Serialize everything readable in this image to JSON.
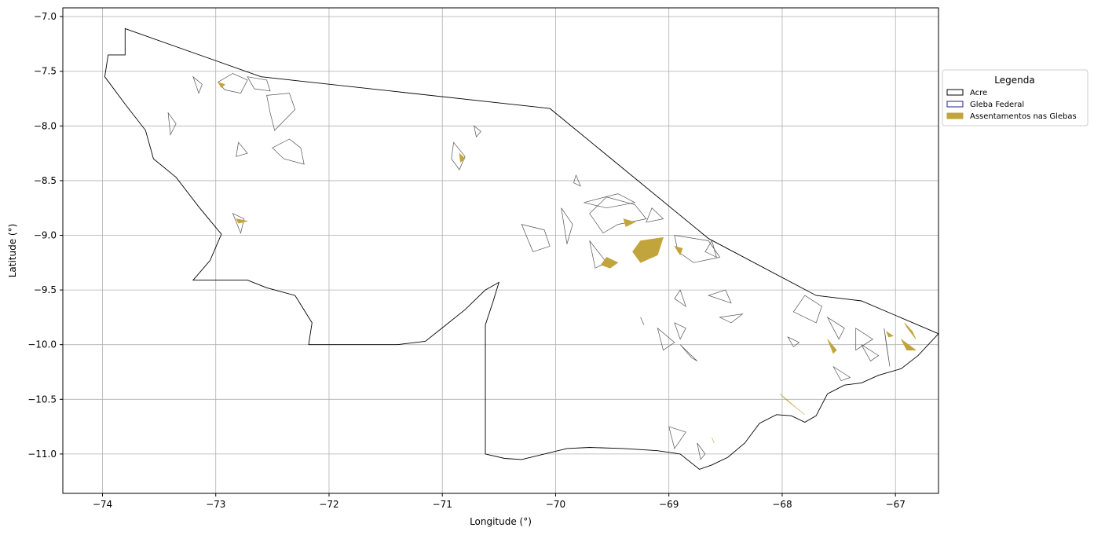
{
  "chart_data": {
    "type": "map",
    "xlabel": "Longitude (°)",
    "ylabel": "Latitude (°)",
    "xlim": [
      -74.35,
      -66.62
    ],
    "ylim": [
      -11.36,
      -6.92
    ],
    "xticks": [
      -74,
      -73,
      -72,
      -71,
      -70,
      -69,
      -68,
      -67
    ],
    "yticks": [
      -7.0,
      -7.5,
      -8.0,
      -8.5,
      -9.0,
      -9.5,
      -10.0,
      -10.5,
      -11.0
    ],
    "xtick_labels": [
      "−74",
      "−73",
      "−72",
      "−71",
      "−70",
      "−69",
      "−68",
      "−67"
    ],
    "ytick_labels": [
      "−7.0",
      "−7.5",
      "−8.0",
      "−8.5",
      "−9.0",
      "−9.5",
      "−10.0",
      "−10.5",
      "−11.0"
    ],
    "grid": true,
    "legend": {
      "title": "Legenda",
      "placement": "outside-right-top",
      "entries": [
        {
          "label": "Acre",
          "color": "#000000",
          "style": "outline"
        },
        {
          "label": "Gleba Federal",
          "color": "#1f1fa0",
          "style": "outline"
        },
        {
          "label": "Assentamentos nas Glebas",
          "color": "#c2a43c",
          "style": "fill"
        }
      ]
    },
    "acre_boundary": [
      [
        -73.8,
        -7.11
      ],
      [
        -72.6,
        -7.55
      ],
      [
        -70.05,
        -7.84
      ],
      [
        -68.65,
        -9.03
      ],
      [
        -67.7,
        -9.55
      ],
      [
        -67.3,
        -9.6
      ],
      [
        -66.62,
        -9.9
      ],
      [
        -66.8,
        -10.1
      ],
      [
        -66.95,
        -10.22
      ],
      [
        -67.15,
        -10.28
      ],
      [
        -67.3,
        -10.35
      ],
      [
        -67.45,
        -10.37
      ],
      [
        -67.6,
        -10.45
      ],
      [
        -67.7,
        -10.65
      ],
      [
        -67.8,
        -10.71
      ],
      [
        -67.92,
        -10.65
      ],
      [
        -68.05,
        -10.64
      ],
      [
        -68.2,
        -10.72
      ],
      [
        -68.33,
        -10.9
      ],
      [
        -68.48,
        -11.03
      ],
      [
        -68.62,
        -11.1
      ],
      [
        -68.73,
        -11.14
      ],
      [
        -68.9,
        -11.0
      ],
      [
        -69.1,
        -10.97
      ],
      [
        -69.4,
        -10.95
      ],
      [
        -69.7,
        -10.94
      ],
      [
        -69.9,
        -10.95
      ],
      [
        -70.1,
        -11.0
      ],
      [
        -70.3,
        -11.05
      ],
      [
        -70.45,
        -11.04
      ],
      [
        -70.62,
        -11.0
      ],
      [
        -70.62,
        -9.82
      ],
      [
        -70.55,
        -9.6
      ],
      [
        -70.5,
        -9.43
      ],
      [
        -70.62,
        -9.5
      ],
      [
        -70.8,
        -9.68
      ],
      [
        -70.98,
        -9.83
      ],
      [
        -71.15,
        -9.97
      ],
      [
        -71.4,
        -10.0
      ],
      [
        -72.18,
        -10.0
      ],
      [
        -72.15,
        -9.8
      ],
      [
        -72.3,
        -9.55
      ],
      [
        -72.55,
        -9.48
      ],
      [
        -72.72,
        -9.41
      ],
      [
        -73.2,
        -9.41
      ],
      [
        -73.05,
        -9.23
      ],
      [
        -72.95,
        -8.99
      ],
      [
        -73.15,
        -8.74
      ],
      [
        -73.35,
        -8.47
      ],
      [
        -73.55,
        -8.3
      ],
      [
        -73.62,
        -8.04
      ],
      [
        -73.8,
        -7.8
      ],
      [
        -73.98,
        -7.55
      ],
      [
        -73.95,
        -7.35
      ],
      [
        -73.8,
        -7.35
      ],
      [
        -73.8,
        -7.11
      ]
    ],
    "glebas": [
      [
        [
          -72.98,
          -7.6
        ],
        [
          -72.85,
          -7.52
        ],
        [
          -72.72,
          -7.58
        ],
        [
          -72.78,
          -7.7
        ],
        [
          -72.92,
          -7.67
        ]
      ],
      [
        [
          -72.72,
          -7.55
        ],
        [
          -72.55,
          -7.58
        ],
        [
          -72.52,
          -7.68
        ],
        [
          -72.66,
          -7.66
        ]
      ],
      [
        [
          -72.55,
          -7.72
        ],
        [
          -72.35,
          -7.7
        ],
        [
          -72.3,
          -7.85
        ],
        [
          -72.48,
          -8.04
        ],
        [
          -72.52,
          -7.88
        ]
      ],
      [
        [
          -73.2,
          -7.55
        ],
        [
          -73.15,
          -7.7
        ],
        [
          -73.12,
          -7.62
        ]
      ],
      [
        [
          -73.35,
          -7.98
        ],
        [
          -73.4,
          -8.08
        ],
        [
          -73.42,
          -7.88
        ]
      ],
      [
        [
          -72.5,
          -8.2
        ],
        [
          -72.35,
          -8.12
        ],
        [
          -72.25,
          -8.2
        ],
        [
          -72.22,
          -8.35
        ],
        [
          -72.4,
          -8.3
        ]
      ],
      [
        [
          -72.8,
          -8.15
        ],
        [
          -72.72,
          -8.25
        ],
        [
          -72.82,
          -8.28
        ]
      ],
      [
        [
          -72.85,
          -8.8
        ],
        [
          -72.75,
          -8.85
        ],
        [
          -72.78,
          -8.98
        ]
      ],
      [
        [
          -70.9,
          -8.15
        ],
        [
          -70.8,
          -8.28
        ],
        [
          -70.85,
          -8.4
        ],
        [
          -70.92,
          -8.3
        ]
      ],
      [
        [
          -70.72,
          -8.0
        ],
        [
          -70.66,
          -8.05
        ],
        [
          -70.7,
          -8.1
        ]
      ],
      [
        [
          -69.82,
          -8.45
        ],
        [
          -69.78,
          -8.55
        ],
        [
          -69.84,
          -8.52
        ]
      ],
      [
        [
          -69.95,
          -8.75
        ],
        [
          -69.9,
          -9.08
        ],
        [
          -69.85,
          -8.9
        ]
      ],
      [
        [
          -70.3,
          -8.9
        ],
        [
          -70.1,
          -8.95
        ],
        [
          -70.05,
          -9.1
        ],
        [
          -70.2,
          -9.15
        ]
      ],
      [
        [
          -69.7,
          -8.8
        ],
        [
          -69.55,
          -8.65
        ],
        [
          -69.3,
          -8.72
        ],
        [
          -69.2,
          -8.85
        ],
        [
          -69.45,
          -8.9
        ],
        [
          -69.58,
          -8.98
        ]
      ],
      [
        [
          -69.75,
          -8.7
        ],
        [
          -69.45,
          -8.62
        ],
        [
          -69.3,
          -8.7
        ],
        [
          -69.55,
          -8.75
        ]
      ],
      [
        [
          -69.15,
          -8.75
        ],
        [
          -69.05,
          -8.85
        ],
        [
          -69.2,
          -8.88
        ]
      ],
      [
        [
          -69.55,
          -9.25
        ],
        [
          -69.7,
          -9.05
        ],
        [
          -69.65,
          -9.3
        ]
      ],
      [
        [
          -68.95,
          -9.0
        ],
        [
          -68.65,
          -9.05
        ],
        [
          -68.55,
          -9.2
        ],
        [
          -68.78,
          -9.25
        ],
        [
          -68.92,
          -9.15
        ]
      ],
      [
        [
          -68.62,
          -9.05
        ],
        [
          -68.58,
          -9.2
        ],
        [
          -68.68,
          -9.15
        ]
      ],
      [
        [
          -68.9,
          -9.5
        ],
        [
          -68.85,
          -9.65
        ],
        [
          -68.95,
          -9.58
        ]
      ],
      [
        [
          -68.65,
          -9.55
        ],
        [
          -68.5,
          -9.5
        ],
        [
          -68.45,
          -9.62
        ]
      ],
      [
        [
          -68.95,
          -9.8
        ],
        [
          -68.85,
          -9.85
        ],
        [
          -68.9,
          -9.95
        ]
      ],
      [
        [
          -69.1,
          -9.85
        ],
        [
          -68.95,
          -9.98
        ],
        [
          -69.05,
          -10.05
        ]
      ],
      [
        [
          -68.9,
          -10.0
        ],
        [
          -68.75,
          -10.15
        ],
        [
          -68.8,
          -10.12
        ]
      ],
      [
        [
          -69.25,
          -9.75
        ],
        [
          -69.22,
          -9.82
        ]
      ],
      [
        [
          -68.55,
          -9.75
        ],
        [
          -68.35,
          -9.72
        ],
        [
          -68.45,
          -9.8
        ]
      ],
      [
        [
          -67.8,
          -9.55
        ],
        [
          -67.65,
          -9.65
        ],
        [
          -67.7,
          -9.8
        ],
        [
          -67.9,
          -9.7
        ]
      ],
      [
        [
          -67.6,
          -9.75
        ],
        [
          -67.45,
          -9.85
        ],
        [
          -67.5,
          -9.95
        ]
      ],
      [
        [
          -67.35,
          -9.85
        ],
        [
          -67.2,
          -9.95
        ],
        [
          -67.35,
          -10.05
        ]
      ],
      [
        [
          -67.3,
          -10.0
        ],
        [
          -67.15,
          -10.1
        ],
        [
          -67.22,
          -10.15
        ]
      ],
      [
        [
          -67.95,
          -9.93
        ],
        [
          -67.85,
          -9.98
        ],
        [
          -67.9,
          -10.02
        ]
      ],
      [
        [
          -67.55,
          -10.2
        ],
        [
          -67.4,
          -10.3
        ],
        [
          -67.48,
          -10.33
        ]
      ],
      [
        [
          -67.1,
          -9.85
        ],
        [
          -67.05,
          -10.2
        ],
        [
          -67.08,
          -10.0
        ]
      ],
      [
        [
          -69.0,
          -10.75
        ],
        [
          -68.85,
          -10.8
        ],
        [
          -68.95,
          -10.95
        ]
      ],
      [
        [
          -68.75,
          -10.9
        ],
        [
          -68.68,
          -11.0
        ],
        [
          -68.72,
          -11.05
        ]
      ]
    ],
    "assentamentos": [
      [
        [
          -69.25,
          -9.05
        ],
        [
          -69.05,
          -9.02
        ],
        [
          -69.1,
          -9.18
        ],
        [
          -69.25,
          -9.25
        ],
        [
          -69.32,
          -9.15
        ]
      ],
      [
        [
          -69.55,
          -9.2
        ],
        [
          -69.45,
          -9.25
        ],
        [
          -69.52,
          -9.3
        ],
        [
          -69.6,
          -9.27
        ]
      ],
      [
        [
          -68.95,
          -9.1
        ],
        [
          -68.88,
          -9.12
        ],
        [
          -68.9,
          -9.18
        ]
      ],
      [
        [
          -69.4,
          -8.85
        ],
        [
          -69.3,
          -8.88
        ],
        [
          -69.38,
          -8.92
        ]
      ],
      [
        [
          -68.02,
          -10.45
        ],
        [
          -67.85,
          -10.6
        ],
        [
          -67.8,
          -10.64
        ],
        [
          -67.97,
          -10.5
        ]
      ],
      [
        [
          -67.6,
          -9.95
        ],
        [
          -67.52,
          -10.05
        ],
        [
          -67.55,
          -10.08
        ]
      ],
      [
        [
          -66.92,
          -9.8
        ],
        [
          -66.85,
          -9.88
        ],
        [
          -66.82,
          -9.95
        ],
        [
          -66.9,
          -9.84
        ]
      ],
      [
        [
          -66.95,
          -9.95
        ],
        [
          -66.82,
          -10.05
        ],
        [
          -66.9,
          -10.05
        ]
      ],
      [
        [
          -70.85,
          -8.25
        ],
        [
          -70.8,
          -8.3
        ],
        [
          -70.84,
          -8.33
        ]
      ],
      [
        [
          -72.82,
          -8.85
        ],
        [
          -72.72,
          -8.87
        ],
        [
          -72.8,
          -8.89
        ]
      ],
      [
        [
          -72.98,
          -7.6
        ],
        [
          -72.95,
          -7.65
        ],
        [
          -72.92,
          -7.62
        ]
      ],
      [
        [
          -67.08,
          -9.88
        ],
        [
          -67.02,
          -9.92
        ],
        [
          -67.06,
          -9.93
        ]
      ],
      [
        [
          -68.62,
          -10.85
        ],
        [
          -68.6,
          -10.9
        ]
      ]
    ]
  }
}
